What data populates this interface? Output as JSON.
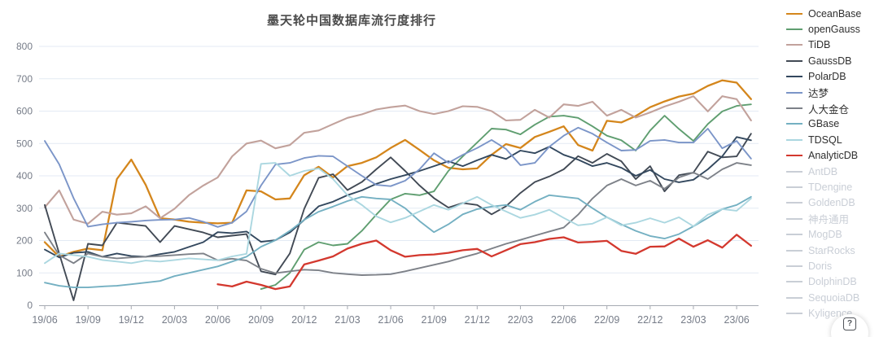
{
  "page": {
    "title": "墨天轮中国数据库流行度排行"
  },
  "y_axis": {
    "ticks": [
      0,
      100,
      200,
      300,
      400,
      500,
      600,
      700,
      800
    ]
  },
  "x_axis": {
    "tick_labels": [
      "19/06",
      "19/09",
      "19/12",
      "20/03",
      "20/06",
      "20/09",
      "20/12",
      "21/03",
      "21/06",
      "21/09",
      "21/12",
      "22/03",
      "22/06",
      "22/09",
      "22/12",
      "23/03",
      "23/06"
    ]
  },
  "legend": {
    "disabled_color": "#c9ced6",
    "items": [
      {
        "label": "OceanBase",
        "color": "#d4861c",
        "active": true
      },
      {
        "label": "openGauss",
        "color": "#5f9e70",
        "active": true
      },
      {
        "label": "TiDB",
        "color": "#c2a29c",
        "active": true
      },
      {
        "label": "GaussDB",
        "color": "#424a55",
        "active": true
      },
      {
        "label": "PolarDB",
        "color": "#33485e",
        "active": true
      },
      {
        "label": "达梦",
        "color": "#7b95c8",
        "active": true
      },
      {
        "label": "人大金仓",
        "color": "#7d8188",
        "active": true
      },
      {
        "label": "GBase",
        "color": "#74b0c2",
        "active": true
      },
      {
        "label": "TDSQL",
        "color": "#abd7e0",
        "active": true
      },
      {
        "label": "AnalyticDB",
        "color": "#d3382e",
        "active": true
      },
      {
        "label": "AntDB",
        "color": "#c9ced6",
        "active": false
      },
      {
        "label": "TDengine",
        "color": "#c9ced6",
        "active": false
      },
      {
        "label": "GoldenDB",
        "color": "#c9ced6",
        "active": false
      },
      {
        "label": "神舟通用",
        "color": "#c9ced6",
        "active": false
      },
      {
        "label": "MogDB",
        "color": "#c9ced6",
        "active": false
      },
      {
        "label": "StarRocks",
        "color": "#c9ced6",
        "active": false
      },
      {
        "label": "Doris",
        "color": "#c9ced6",
        "active": false
      },
      {
        "label": "DolphinDB",
        "color": "#c9ced6",
        "active": false
      },
      {
        "label": "SequoiaDB",
        "color": "#c9ced6",
        "active": false
      },
      {
        "label": "Kyligence",
        "color": "#c9ced6",
        "active": false
      }
    ]
  },
  "help_button": {
    "glyph": "?"
  },
  "chart_data": {
    "type": "line",
    "title": "墨天轮中国数据库流行度排行",
    "xlabel": "",
    "ylabel": "",
    "ylim": [
      0,
      800
    ],
    "grid": true,
    "legend_position": "right",
    "x": [
      "19/06",
      "19/07",
      "19/08",
      "19/09",
      "19/10",
      "19/11",
      "19/12",
      "20/01",
      "20/02",
      "20/03",
      "20/04",
      "20/05",
      "20/06",
      "20/07",
      "20/08",
      "20/09",
      "20/10",
      "20/11",
      "20/12",
      "21/01",
      "21/02",
      "21/03",
      "21/04",
      "21/05",
      "21/06",
      "21/07",
      "21/08",
      "21/09",
      "21/10",
      "21/11",
      "21/12",
      "22/01",
      "22/02",
      "22/03",
      "22/04",
      "22/05",
      "22/06",
      "22/07",
      "22/08",
      "22/09",
      "22/10",
      "22/11",
      "22/12",
      "23/01",
      "23/02",
      "23/03",
      "23/04",
      "23/05",
      "23/06",
      "23/07"
    ],
    "x_tick_every": 3,
    "series": [
      {
        "name": "OceanBase",
        "color": "#d4861c",
        "width": 2.3,
        "values": [
          195,
          150,
          165,
          175,
          170,
          390,
          450,
          372,
          269,
          265,
          258,
          255,
          253,
          255,
          355,
          352,
          327,
          330,
          402,
          428,
          395,
          430,
          440,
          457,
          486,
          511,
          480,
          448,
          425,
          420,
          423,
          465,
          498,
          486,
          520,
          536,
          553,
          495,
          478,
          570,
          565,
          585,
          612,
          630,
          645,
          654,
          678,
          695,
          688,
          637
        ]
      },
      {
        "name": "openGauss",
        "color": "#5f9e70",
        "width": 1.9,
        "values": [
          null,
          null,
          null,
          null,
          null,
          null,
          null,
          null,
          null,
          null,
          null,
          null,
          null,
          null,
          null,
          50,
          63,
          100,
          172,
          195,
          185,
          190,
          230,
          280,
          327,
          345,
          340,
          352,
          415,
          460,
          503,
          546,
          543,
          528,
          558,
          583,
          586,
          579,
          553,
          524,
          510,
          478,
          540,
          586,
          545,
          508,
          560,
          599,
          616,
          621
        ]
      },
      {
        "name": "TiDB",
        "color": "#c2a29c",
        "width": 2.1,
        "values": [
          303,
          355,
          265,
          252,
          289,
          280,
          284,
          306,
          269,
          298,
          340,
          370,
          395,
          460,
          500,
          509,
          485,
          495,
          533,
          540,
          560,
          579,
          590,
          605,
          612,
          617,
          600,
          591,
          600,
          615,
          613,
          600,
          571,
          573,
          604,
          580,
          621,
          616,
          629,
          586,
          604,
          580,
          596,
          614,
          629,
          646,
          599,
          646,
          637,
          571
        ]
      },
      {
        "name": "GaussDB",
        "color": "#424a55",
        "width": 1.9,
        "values": [
          310,
          160,
          15,
          190,
          185,
          255,
          250,
          245,
          195,
          245,
          235,
          225,
          210,
          215,
          220,
          105,
          95,
          160,
          298,
          394,
          405,
          356,
          381,
          420,
          457,
          415,
          370,
          331,
          302,
          316,
          310,
          281,
          306,
          347,
          381,
          398,
          420,
          461,
          440,
          468,
          445,
          390,
          430,
          352,
          402,
          410,
          475,
          457,
          460,
          530
        ]
      },
      {
        "name": "PolarDB",
        "color": "#33485e",
        "width": 1.9,
        "values": [
          172,
          148,
          162,
          165,
          150,
          160,
          152,
          150,
          158,
          165,
          180,
          195,
          226,
          223,
          228,
          196,
          201,
          225,
          264,
          306,
          320,
          340,
          355,
          375,
          390,
          402,
          415,
          430,
          445,
          430,
          448,
          465,
          452,
          478,
          470,
          490,
          465,
          450,
          430,
          440,
          425,
          400,
          418,
          390,
          380,
          388,
          420,
          460,
          520,
          510
        ]
      },
      {
        "name": "达梦",
        "color": "#7b95c8",
        "width": 1.9,
        "values": [
          508,
          436,
          331,
          243,
          250,
          255,
          258,
          262,
          264,
          265,
          270,
          258,
          242,
          255,
          290,
          370,
          435,
          440,
          455,
          462,
          460,
          430,
          400,
          372,
          368,
          385,
          420,
          470,
          440,
          465,
          486,
          511,
          483,
          433,
          440,
          490,
          524,
          549,
          530,
          503,
          478,
          480,
          508,
          511,
          503,
          503,
          546,
          485,
          508,
          453
        ]
      },
      {
        "name": "人大金仓",
        "color": "#7d8188",
        "width": 1.9,
        "values": [
          225,
          155,
          130,
          160,
          150,
          145,
          148,
          150,
          152,
          155,
          158,
          160,
          139,
          144,
          138,
          113,
          99,
          105,
          110,
          108,
          100,
          96,
          93,
          94,
          96,
          105,
          115,
          125,
          135,
          148,
          160,
          175,
          190,
          202,
          215,
          228,
          240,
          280,
          330,
          370,
          390,
          370,
          385,
          360,
          395,
          410,
          390,
          420,
          440,
          433
        ]
      },
      {
        "name": "GBase",
        "color": "#74b0c2",
        "width": 1.9,
        "values": [
          70,
          60,
          55,
          55,
          58,
          60,
          65,
          70,
          75,
          90,
          100,
          110,
          120,
          135,
          150,
          181,
          201,
          230,
          264,
          289,
          305,
          322,
          335,
          330,
          327,
          300,
          260,
          226,
          250,
          281,
          297,
          305,
          310,
          295,
          320,
          340,
          335,
          330,
          300,
          272,
          250,
          230,
          214,
          206,
          220,
          244,
          270,
          297,
          310,
          335
        ]
      },
      {
        "name": "TDSQL",
        "color": "#abd7e0",
        "width": 1.9,
        "values": [
          130,
          160,
          155,
          150,
          140,
          135,
          130,
          138,
          135,
          140,
          145,
          142,
          139,
          151,
          159,
          437,
          440,
          400,
          415,
          423,
          390,
          340,
          310,
          275,
          256,
          270,
          290,
          310,
          295,
          315,
          335,
          310,
          290,
          270,
          280,
          295,
          270,
          247,
          252,
          272,
          247,
          255,
          269,
          255,
          272,
          244,
          280,
          297,
          292,
          330
        ]
      },
      {
        "name": "AnalyticDB",
        "color": "#d3382e",
        "width": 2.3,
        "values": [
          null,
          null,
          null,
          null,
          null,
          null,
          null,
          null,
          null,
          null,
          null,
          null,
          65,
          58,
          73,
          63,
          50,
          58,
          126,
          138,
          151,
          175,
          190,
          200,
          170,
          150,
          155,
          157,
          162,
          170,
          174,
          151,
          170,
          189,
          195,
          205,
          210,
          194,
          196,
          199,
          168,
          159,
          181,
          182,
          206,
          181,
          201,
          178,
          218,
          184
        ]
      }
    ]
  },
  "plot_style": {
    "grid_color": "#e3eaf4",
    "axis_color": "#a6aab2",
    "tick_label_color": "#767c88",
    "title_color": "#4a4a4a"
  }
}
